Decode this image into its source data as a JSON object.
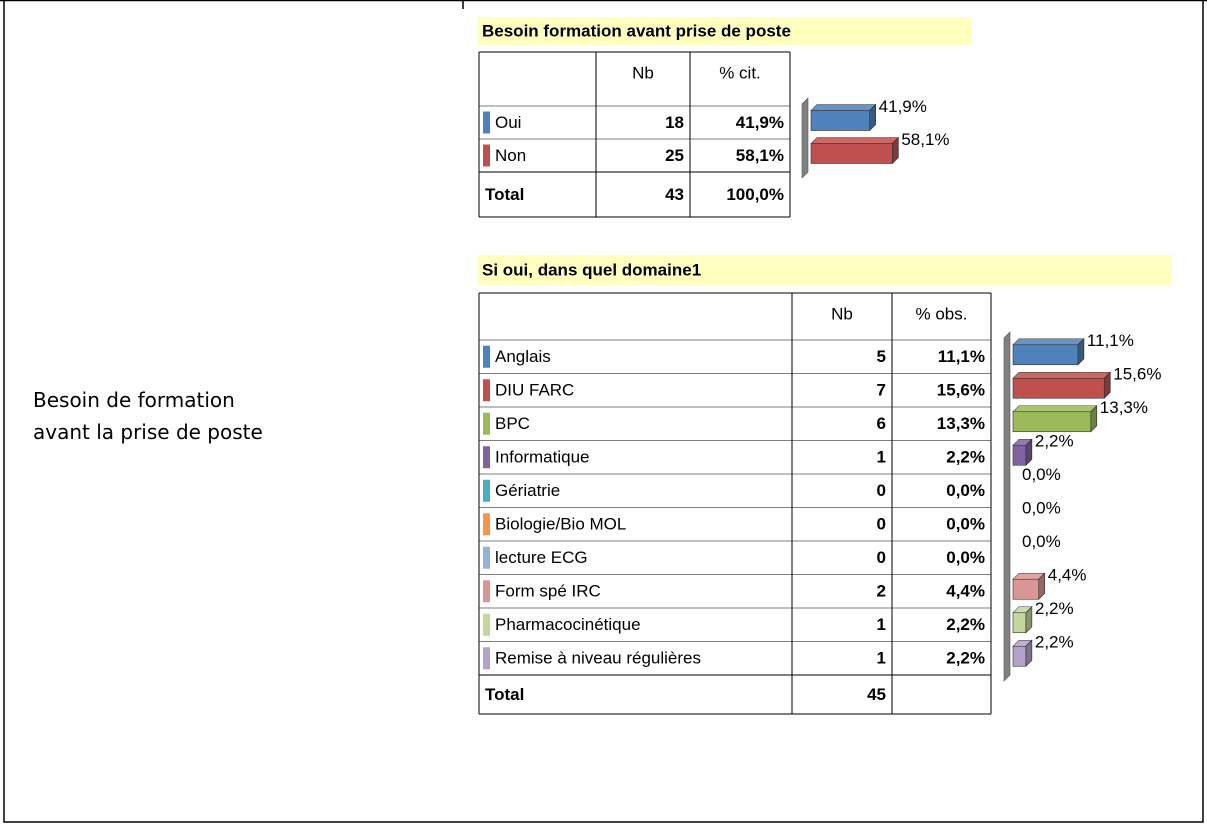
{
  "left_label": "Besoin de formation\navant la prise de poste",
  "sections": [
    {
      "title": "Besoin formation avant prise de poste",
      "columns": [
        "Nb",
        "% cit."
      ],
      "rows": [
        {
          "label": "Oui",
          "color": "#4f81bd",
          "nb": 18,
          "pct": 41.9,
          "pct_label": "41,9%"
        },
        {
          "label": "Non",
          "color": "#c0504d",
          "nb": 25,
          "pct": 58.1,
          "pct_label": "58,1%"
        }
      ],
      "total": {
        "label": "Total",
        "nb": 43,
        "pct": 100.0,
        "pct_label": "100,0%"
      }
    },
    {
      "title": "Si oui, dans quel domaine1",
      "columns": [
        "Nb",
        "% obs."
      ],
      "rows": [
        {
          "label": "Anglais",
          "color": "#4f81bd",
          "nb": 5,
          "pct": 11.1,
          "pct_label": "11,1%"
        },
        {
          "label": "DIU FARC",
          "color": "#c0504d",
          "nb": 7,
          "pct": 15.6,
          "pct_label": "15,6%"
        },
        {
          "label": "BPC",
          "color": "#9bbb59",
          "nb": 6,
          "pct": 13.3,
          "pct_label": "13,3%"
        },
        {
          "label": "Informatique",
          "color": "#8064a2",
          "nb": 1,
          "pct": 2.2,
          "pct_label": "2,2%"
        },
        {
          "label": "Gériatrie",
          "color": "#4bacc6",
          "nb": 0,
          "pct": 0.0,
          "pct_label": "0,0%"
        },
        {
          "label": "Biologie/Bio MOL",
          "color": "#f79646",
          "nb": 0,
          "pct": 0.0,
          "pct_label": "0,0%"
        },
        {
          "label": "lecture ECG",
          "color": "#95b3d7",
          "nb": 0,
          "pct": 0.0,
          "pct_label": "0,0%"
        },
        {
          "label": "Form spé IRC",
          "color": "#d99694",
          "nb": 2,
          "pct": 4.4,
          "pct_label": "4,4%"
        },
        {
          "label": "Pharmacocinétique",
          "color": "#c3d69b",
          "nb": 1,
          "pct": 2.2,
          "pct_label": "2,2%"
        },
        {
          "label": "Remise à niveau régulières",
          "color": "#b3a2c7",
          "nb": 1,
          "pct": 2.2,
          "pct_label": "2,2%"
        }
      ],
      "total": {
        "label": "Total",
        "nb": 45
      }
    }
  ]
}
